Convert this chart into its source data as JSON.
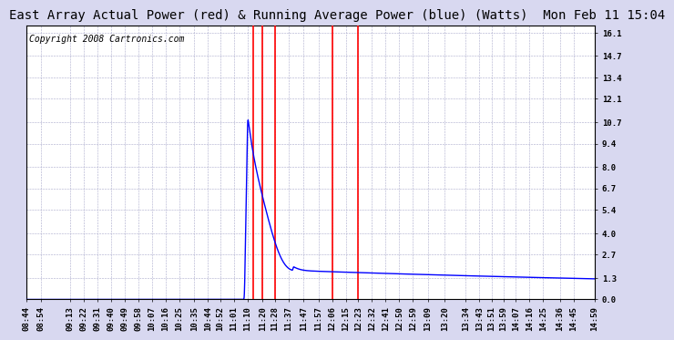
{
  "title": "East Array Actual Power (red) & Running Average Power (blue) (Watts)  Mon Feb 11 15:04",
  "copyright": "Copyright 2008 Cartronics.com",
  "figure_bg": "#d8d8f0",
  "plot_bg": "#ffffff",
  "grid_color": "#aaaacc",
  "yticks": [
    0.0,
    1.3,
    2.7,
    4.0,
    5.4,
    6.7,
    8.0,
    9.4,
    10.7,
    12.1,
    13.4,
    14.7,
    16.1
  ],
  "ylim": [
    0.0,
    16.5
  ],
  "xtick_labels": [
    "08:44",
    "08:54",
    "09:13",
    "09:22",
    "09:31",
    "09:40",
    "09:49",
    "09:58",
    "10:07",
    "10:16",
    "10:25",
    "10:35",
    "10:44",
    "10:52",
    "11:01",
    "11:10",
    "11:20",
    "11:28",
    "11:37",
    "11:47",
    "11:57",
    "12:06",
    "12:15",
    "12:23",
    "12:32",
    "12:41",
    "12:50",
    "12:59",
    "13:09",
    "13:20",
    "13:34",
    "13:43",
    "13:51",
    "13:59",
    "14:07",
    "14:16",
    "14:25",
    "14:36",
    "14:45",
    "14:59"
  ],
  "red_vline_labels": [
    "11:14",
    "11:20",
    "11:28",
    "12:06",
    "12:23"
  ],
  "title_fontsize": 10,
  "tick_fontsize": 6.5,
  "copyright_fontsize": 7
}
